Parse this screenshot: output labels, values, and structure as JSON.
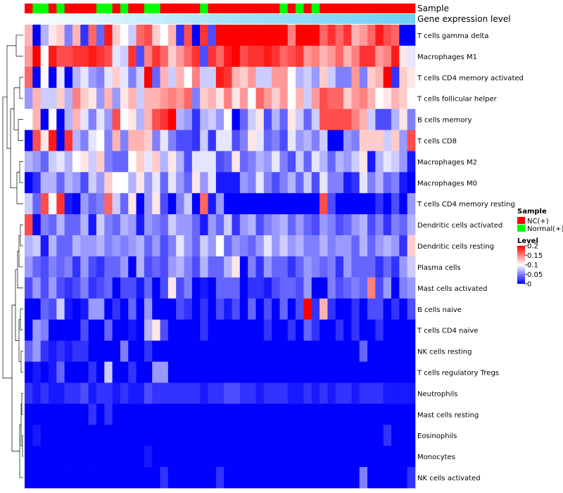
{
  "chart_data": {
    "type": "heatmap",
    "title": "",
    "annotation_tracks": [
      {
        "name": "Sample",
        "kind": "categorical"
      },
      {
        "name": "Gene expression level",
        "kind": "gradient"
      }
    ],
    "sample_groups": [
      "NC",
      "N",
      "N",
      "NC",
      "N",
      "NC",
      "NC",
      "NC",
      "NC",
      "N",
      "N",
      "NC",
      "N",
      "NC",
      "NC",
      "N",
      "N",
      "NC",
      "NC",
      "NC",
      "NC",
      "NC",
      "N",
      "NC",
      "NC",
      "NC",
      "NC",
      "NC",
      "NC",
      "NC",
      "NC",
      "NC",
      "N",
      "NC",
      "N",
      "NC",
      "N",
      "NC",
      "NC",
      "NC",
      "NC",
      "NC",
      "NC",
      "NC",
      "NC",
      "NC",
      "NC",
      "NC",
      "NC"
    ],
    "row_labels": [
      "T cells gamma delta",
      "Macrophages M1",
      "T cells CD4 memory activated",
      "T cells follicular helper",
      "B cells memory",
      "T cells CD8",
      "Macrophages M2",
      "Macrophages M0",
      "T cells CD4 memory resting",
      "Dendritic cells activated",
      "Dendritic cells resting",
      "Plasma cells",
      "Mast cells activated",
      "B cells naive",
      "T cells CD4 naive",
      "NK cells resting",
      "T cells regulatory  Tregs",
      "Neutrophils",
      "Mast cells resting",
      "Eosinophils",
      "Monocytes",
      "NK cells activated"
    ],
    "values": [
      [
        0.13,
        0.0,
        0.07,
        0.11,
        0.12,
        0.05,
        0.13,
        0.02,
        0.16,
        0.04,
        0.19,
        0.12,
        0.1,
        0.08,
        0.16,
        0.17,
        0.12,
        0.1,
        0.13,
        0.02,
        0.17,
        0.0,
        0.18,
        0.03,
        0.2,
        0.2,
        0.2,
        0.2,
        0.2,
        0.2,
        0.2,
        0.2,
        0.2,
        0.15,
        0.2,
        0.2,
        0.2,
        0.16,
        0.18,
        0.16,
        0.18,
        0.13,
        0.14,
        0.16,
        0.19,
        0.17,
        0.16,
        0.0,
        0.0
      ],
      [
        0.14,
        0.2,
        0.1,
        0.19,
        0.17,
        0.17,
        0.18,
        0.18,
        0.19,
        0.18,
        0.17,
        0.09,
        0.08,
        0.18,
        0.03,
        0.15,
        0.18,
        0.16,
        0.12,
        0.14,
        0.16,
        0.18,
        0.03,
        0.18,
        0.16,
        0.19,
        0.2,
        0.17,
        0.18,
        0.18,
        0.19,
        0.18,
        0.16,
        0.17,
        0.18,
        0.14,
        0.15,
        0.13,
        0.14,
        0.16,
        0.13,
        0.15,
        0.18,
        0.18,
        0.14,
        0.15,
        0.19,
        0.11,
        0.09
      ],
      [
        0.16,
        0.0,
        0.1,
        0.0,
        0.09,
        0.0,
        0.07,
        0.09,
        0.06,
        0.05,
        0.09,
        0.12,
        0.09,
        0.05,
        0.08,
        0.2,
        0.04,
        0.13,
        0.08,
        0.13,
        0.1,
        0.15,
        0.08,
        0.08,
        0.19,
        0.18,
        0.13,
        0.12,
        0.14,
        0.08,
        0.08,
        0.14,
        0.14,
        0.1,
        0.07,
        0.08,
        0.06,
        0.12,
        0.08,
        0.05,
        0.05,
        0.14,
        0.05,
        0.12,
        0.13,
        0.2,
        0.02,
        0.12,
        0.11
      ],
      [
        0.06,
        0.13,
        0.08,
        0.08,
        0.12,
        0.07,
        0.15,
        0.12,
        0.11,
        0.06,
        0.13,
        0.06,
        0.11,
        0.13,
        0.08,
        0.13,
        0.13,
        0.14,
        0.15,
        0.14,
        0.16,
        0.05,
        0.12,
        0.13,
        0.11,
        0.15,
        0.11,
        0.14,
        0.1,
        0.16,
        0.14,
        0.12,
        0.14,
        0.1,
        0.13,
        0.08,
        0.14,
        0.17,
        0.16,
        0.16,
        0.12,
        0.14,
        0.15,
        0.13,
        0.1,
        0.11,
        0.13,
        0.12,
        0.1
      ],
      [
        0.1,
        0.13,
        0.0,
        0.1,
        0.0,
        0.07,
        0.13,
        0.09,
        0.05,
        0.09,
        0.06,
        0.17,
        0.1,
        0.11,
        0.07,
        0.13,
        0.17,
        0.18,
        0.2,
        0.07,
        0.06,
        0.02,
        0.07,
        0.08,
        0.06,
        0.1,
        0.0,
        0.04,
        0.08,
        0.11,
        0.03,
        0.07,
        0.04,
        0.11,
        0.08,
        0.04,
        0.08,
        0.17,
        0.17,
        0.17,
        0.17,
        0.15,
        0.13,
        0.08,
        0.03,
        0.03,
        0.07,
        0.11,
        0.05
      ],
      [
        0.0,
        0.17,
        0.11,
        0.19,
        0.0,
        0.18,
        0.07,
        0.05,
        0.09,
        0.1,
        0.05,
        0.13,
        0.05,
        0.13,
        0.13,
        0.12,
        0.05,
        0.09,
        0.05,
        0.03,
        0.03,
        0.02,
        0.08,
        0.02,
        0.09,
        0.09,
        0.03,
        0.05,
        0.11,
        0.09,
        0.04,
        0.05,
        0.03,
        0.09,
        0.06,
        0.07,
        0.05,
        0.08,
        0.0,
        0.0,
        0.06,
        0.05,
        0.12,
        0.12,
        0.12,
        0.08,
        0.12,
        0.06,
        0.17
      ],
      [
        0.07,
        0.06,
        0.04,
        0.08,
        0.09,
        0.07,
        0.1,
        0.11,
        0.08,
        0.12,
        0.05,
        0.04,
        0.04,
        0.1,
        0.12,
        0.09,
        0.12,
        0.07,
        0.11,
        0.07,
        0.03,
        0.09,
        0.09,
        0.09,
        0.03,
        0.04,
        0.11,
        0.04,
        0.05,
        0.07,
        0.06,
        0.09,
        0.05,
        0.03,
        0.08,
        0.04,
        0.09,
        0.07,
        0.04,
        0.07,
        0.06,
        0.08,
        0.11,
        0.01,
        0.07,
        0.09,
        0.08,
        0.06,
        0.01
      ],
      [
        0.0,
        0.02,
        0.07,
        0.07,
        0.04,
        0.07,
        0.06,
        0.03,
        0.08,
        0.06,
        0.12,
        0.1,
        0.1,
        0.07,
        0.11,
        0.06,
        0.09,
        0.04,
        0.09,
        0.06,
        0.04,
        0.11,
        0.06,
        0.09,
        0.01,
        0.01,
        0.01,
        0.06,
        0.05,
        0.09,
        0.05,
        0.03,
        0.05,
        0.07,
        0.04,
        0.08,
        0.03,
        0.09,
        0.05,
        0.05,
        0.01,
        0.02,
        0.09,
        0.05,
        0.07,
        0.04,
        0.05,
        0.01,
        0.0
      ],
      [
        0.08,
        0.04,
        0.17,
        0.1,
        0.18,
        0.01,
        0.0,
        0.06,
        0.04,
        0.05,
        0.16,
        0.08,
        0.04,
        0.11,
        0.0,
        0.06,
        0.11,
        0.03,
        0.0,
        0.05,
        0.08,
        0.0,
        0.16,
        0.01,
        0.06,
        0.0,
        0.0,
        0.0,
        0.0,
        0.0,
        0.0,
        0.0,
        0.0,
        0.0,
        0.0,
        0.0,
        0.0,
        0.17,
        0.03,
        0.0,
        0.0,
        0.0,
        0.0,
        0.0,
        0.02,
        0.0,
        0.03,
        0.0,
        0.06
      ],
      [
        0.17,
        0.0,
        0.05,
        0.04,
        0.07,
        0.04,
        0.04,
        0.07,
        0.01,
        0.08,
        0.05,
        0.04,
        0.07,
        0.06,
        0.01,
        0.06,
        0.05,
        0.04,
        0.08,
        0.06,
        0.06,
        0.04,
        0.01,
        0.06,
        0.04,
        0.08,
        0.02,
        0.06,
        0.07,
        0.03,
        0.05,
        0.06,
        0.07,
        0.04,
        0.06,
        0.04,
        0.03,
        0.06,
        0.05,
        0.03,
        0.04,
        0.06,
        0.07,
        0.03,
        0.05,
        0.02,
        0.05,
        0.04,
        0.07
      ],
      [
        0.07,
        0.08,
        0.01,
        0.07,
        0.04,
        0.04,
        0.07,
        0.06,
        0.06,
        0.07,
        0.05,
        0.06,
        0.05,
        0.06,
        0.07,
        0.04,
        0.06,
        0.03,
        0.05,
        0.09,
        0.06,
        0.04,
        0.08,
        0.06,
        0.1,
        0.04,
        0.06,
        0.05,
        0.04,
        0.06,
        0.09,
        0.06,
        0.08,
        0.06,
        0.07,
        0.05,
        0.05,
        0.07,
        0.05,
        0.06,
        0.06,
        0.04,
        0.07,
        0.04,
        0.06,
        0.07,
        0.06,
        0.02,
        0.12
      ],
      [
        0.06,
        0.04,
        0.03,
        0.05,
        0.04,
        0.05,
        0.02,
        0.06,
        0.03,
        0.02,
        0.04,
        0.04,
        0.06,
        0.0,
        0.07,
        0.03,
        0.04,
        0.03,
        0.06,
        0.07,
        0.05,
        0.03,
        0.07,
        0.04,
        0.04,
        0.07,
        0.11,
        0.0,
        0.05,
        0.02,
        0.06,
        0.04,
        0.04,
        0.02,
        0.04,
        0.06,
        0.05,
        0.04,
        0.05,
        0.02,
        0.06,
        0.04,
        0.04,
        0.04,
        0.02,
        0.04,
        0.02,
        0.06,
        0.08
      ],
      [
        0.03,
        0.06,
        0.03,
        0.06,
        0.03,
        0.02,
        0.03,
        0.05,
        0.02,
        0.03,
        0.04,
        0.0,
        0.03,
        0.03,
        0.01,
        0.04,
        0.0,
        0.03,
        0.11,
        0.03,
        0.05,
        0.0,
        0.01,
        0.0,
        0.04,
        0.04,
        0.04,
        0.0,
        0.02,
        0.02,
        0.01,
        0.03,
        0.04,
        0.04,
        0.03,
        0.06,
        0.0,
        0.0,
        0.05,
        0.03,
        0.04,
        0.05,
        0.04,
        0.15,
        0.03,
        0.06,
        0.0,
        0.05,
        0.06
      ],
      [
        0.0,
        0.0,
        0.04,
        0.03,
        0.08,
        0.01,
        0.0,
        0.01,
        0.06,
        0.06,
        0.0,
        0.02,
        0.0,
        0.04,
        0.0,
        0.06,
        0.0,
        0.0,
        0.0,
        0.03,
        0.02,
        0.0,
        0.02,
        0.0,
        0.03,
        0.01,
        0.03,
        0.0,
        0.04,
        0.0,
        0.03,
        0.0,
        0.04,
        0.0,
        0.03,
        0.2,
        0.02,
        0.13,
        0.02,
        0.0,
        0.0,
        0.02,
        0.0,
        0.03,
        0.03,
        0.0,
        0.02,
        0.0,
        0.03
      ],
      [
        0.0,
        0.06,
        0.05,
        0.0,
        0.0,
        0.0,
        0.0,
        0.03,
        0.0,
        0.0,
        0.04,
        0.0,
        0.0,
        0.01,
        0.0,
        0.07,
        0.11,
        0.03,
        0.0,
        0.0,
        0.0,
        0.0,
        0.02,
        0.0,
        0.0,
        0.0,
        0.0,
        0.0,
        0.0,
        0.0,
        0.02,
        0.0,
        0.0,
        0.02,
        0.0,
        0.04,
        0.02,
        0.0,
        0.0,
        0.02,
        0.0,
        0.02,
        0.0,
        0.0,
        0.02,
        0.0,
        0.0,
        0.0,
        0.0
      ],
      [
        0.04,
        0.06,
        0.02,
        0.01,
        0.02,
        0.01,
        0.02,
        0.02,
        0.0,
        0.0,
        0.0,
        0.0,
        0.05,
        0.0,
        0.0,
        0.02,
        0.0,
        0.0,
        0.0,
        0.0,
        0.0,
        0.0,
        0.0,
        0.0,
        0.0,
        0.0,
        0.0,
        0.0,
        0.0,
        0.0,
        0.0,
        0.0,
        0.0,
        0.0,
        0.0,
        0.0,
        0.0,
        0.0,
        0.0,
        0.0,
        0.0,
        0.0,
        0.04,
        0.0,
        0.0,
        0.0,
        0.0,
        0.0,
        0.0
      ],
      [
        0.0,
        0.01,
        0.0,
        0.01,
        0.04,
        0.0,
        0.0,
        0.0,
        0.02,
        0.0,
        0.08,
        0.0,
        0.0,
        0.02,
        0.0,
        0.0,
        0.06,
        0.06,
        0.0,
        0.0,
        0.0,
        0.0,
        0.0,
        0.0,
        0.0,
        0.0,
        0.0,
        0.0,
        0.0,
        0.0,
        0.0,
        0.0,
        0.0,
        0.0,
        0.0,
        0.0,
        0.0,
        0.0,
        0.0,
        0.0,
        0.0,
        0.0,
        0.0,
        0.0,
        0.0,
        0.0,
        0.0,
        0.0,
        0.0
      ],
      [
        0.02,
        0.01,
        0.02,
        0.01,
        0.01,
        0.02,
        0.02,
        0.03,
        0.01,
        0.02,
        0.02,
        0.01,
        0.02,
        0.01,
        0.01,
        0.03,
        0.02,
        0.02,
        0.02,
        0.02,
        0.02,
        0.02,
        0.01,
        0.02,
        0.02,
        0.03,
        0.03,
        0.02,
        0.02,
        0.01,
        0.02,
        0.02,
        0.02,
        0.01,
        0.01,
        0.02,
        0.01,
        0.02,
        0.01,
        0.02,
        0.02,
        0.01,
        0.02,
        0.02,
        0.02,
        0.01,
        0.01,
        0.01,
        0.01
      ],
      [
        0.0,
        0.0,
        0.0,
        0.0,
        0.0,
        0.0,
        0.0,
        0.0,
        0.02,
        0.0,
        0.02,
        0.0,
        0.0,
        0.0,
        0.0,
        0.0,
        0.0,
        0.0,
        0.0,
        0.0,
        0.0,
        0.0,
        0.0,
        0.0,
        0.0,
        0.0,
        0.0,
        0.0,
        0.0,
        0.0,
        0.0,
        0.0,
        0.0,
        0.0,
        0.0,
        0.0,
        0.0,
        0.0,
        0.0,
        0.0,
        0.0,
        0.0,
        0.0,
        0.0,
        0.0,
        0.0,
        0.0,
        0.0,
        0.0
      ],
      [
        0.0,
        0.01,
        0.0,
        0.0,
        0.0,
        0.0,
        0.0,
        0.0,
        0.0,
        0.0,
        0.0,
        0.0,
        0.0,
        0.0,
        0.0,
        0.0,
        0.0,
        0.0,
        0.0,
        0.0,
        0.0,
        0.0,
        0.0,
        0.0,
        0.0,
        0.0,
        0.0,
        0.0,
        0.0,
        0.0,
        0.0,
        0.0,
        0.0,
        0.0,
        0.0,
        0.0,
        0.0,
        0.0,
        0.0,
        0.0,
        0.0,
        0.0,
        0.0,
        0.0,
        0.0,
        0.02,
        0.0,
        0.0,
        0.0
      ],
      [
        0.0,
        0.0,
        0.0,
        0.0,
        0.0,
        0.0,
        0.0,
        0.0,
        0.0,
        0.0,
        0.0,
        0.0,
        0.0,
        0.0,
        0.0,
        0.01,
        0.0,
        0.0,
        0.0,
        0.0,
        0.0,
        0.0,
        0.0,
        0.0,
        0.0,
        0.0,
        0.0,
        0.0,
        0.0,
        0.0,
        0.0,
        0.0,
        0.0,
        0.0,
        0.0,
        0.0,
        0.0,
        0.0,
        0.0,
        0.0,
        0.0,
        0.0,
        0.0,
        0.0,
        0.0,
        0.0,
        0.0,
        0.0,
        0.0
      ],
      [
        0.0,
        0.0,
        0.0,
        0.0,
        0.0,
        0.0,
        0.0,
        0.0,
        0.0,
        0.0,
        0.0,
        0.0,
        0.0,
        0.0,
        0.0,
        0.0,
        0.0,
        0.02,
        0.0,
        0.0,
        0.0,
        0.0,
        0.0,
        0.0,
        0.02,
        0.0,
        0.0,
        0.0,
        0.0,
        0.0,
        0.0,
        0.0,
        0.0,
        0.0,
        0.0,
        0.0,
        0.0,
        0.0,
        0.0,
        0.0,
        0.0,
        0.0,
        0.05,
        0.0,
        0.0,
        0.0,
        0.0,
        0.0,
        0.02
      ]
    ],
    "legend": {
      "sample": {
        "title": "Sample",
        "items": [
          {
            "key": "NC",
            "label": "NC(+)",
            "color": "#ff0000"
          },
          {
            "key": "N",
            "label": "Normal(+)",
            "color": "#00ff00"
          }
        ]
      },
      "level": {
        "title": "Level",
        "ticks": [
          0.2,
          0.15,
          0.1,
          0.05,
          0
        ],
        "tick_labels": [
          "0.2",
          "0.15",
          "0.1",
          "0.05",
          "0"
        ],
        "range": [
          0,
          0.2
        ]
      }
    },
    "colors": {
      "low": "#0000ff",
      "mid": "#ffffff",
      "high": "#ff0000",
      "gene_start": "#ffffff",
      "gene_end": "#6ecff6"
    }
  }
}
